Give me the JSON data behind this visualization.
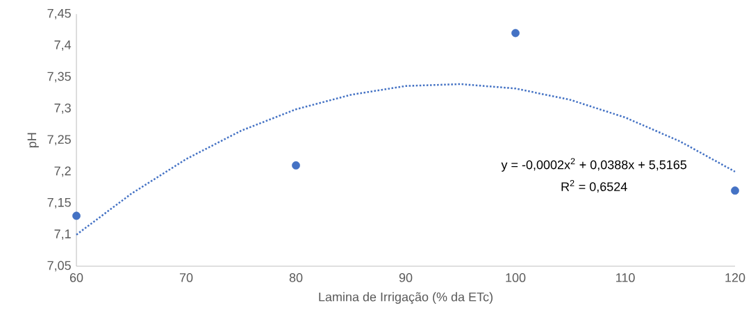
{
  "chart_data": {
    "type": "scatter",
    "xlabel": "Lamina de Irrigação (% da ETc)",
    "ylabel": "pH",
    "xlim": [
      60,
      120
    ],
    "xticks": [
      60,
      70,
      80,
      90,
      100,
      110,
      120
    ],
    "ylim": [
      7.05,
      7.45
    ],
    "yticks": [
      {
        "value": 7.05,
        "label": "7,05"
      },
      {
        "value": 7.1,
        "label": "7,1"
      },
      {
        "value": 7.15,
        "label": "7,15"
      },
      {
        "value": 7.2,
        "label": "7,2"
      },
      {
        "value": 7.25,
        "label": "7,25"
      },
      {
        "value": 7.3,
        "label": "7,3"
      },
      {
        "value": 7.35,
        "label": "7,35"
      },
      {
        "value": 7.4,
        "label": "7,4"
      },
      {
        "value": 7.45,
        "label": "7,45"
      }
    ],
    "series": [
      {
        "color": "#4472c4",
        "marker": "circle",
        "x": [
          60,
          80,
          100,
          120
        ],
        "values": [
          7.13,
          7.21,
          7.42,
          7.17
        ]
      },
      {
        "type": "line",
        "color": "#4472c4",
        "marker": "none",
        "line_style": "dotted",
        "x": [
          60,
          65,
          70,
          75,
          80,
          85,
          90,
          95,
          100,
          105,
          110,
          115,
          120
        ],
        "values": [
          7.1,
          7.165,
          7.22,
          7.265,
          7.299,
          7.322,
          7.336,
          7.339,
          7.332,
          7.314,
          7.286,
          7.248,
          7.2
        ]
      }
    ],
    "annotations": [
      "y = -0,0002x$^{2}$ + 0,0388x + 5,5165",
      "R$^{2}$ = 0,6524"
    ],
    "grid": false
  }
}
